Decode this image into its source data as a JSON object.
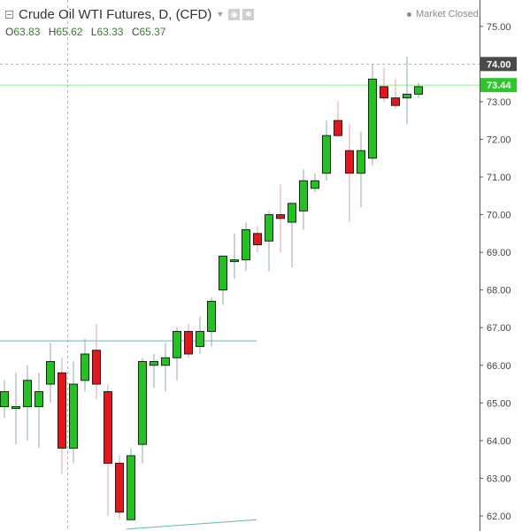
{
  "legend": {
    "symbol": "Crude Oil WTI Futures",
    "interval": "D",
    "exchange": "(CFD)",
    "ohlc": [
      {
        "label": "O",
        "value": "63.83"
      },
      {
        "label": "H",
        "value": "65.62"
      },
      {
        "label": "L",
        "value": "63.33"
      },
      {
        "label": "C",
        "value": "65.37"
      }
    ]
  },
  "status": "Market Closed",
  "colors": {
    "up": "#21c41f",
    "down": "#e8141a",
    "wick": "#8fa8b8",
    "price_line": "#8ef08a",
    "price_badge": "#2ec72b",
    "crosshair_badge": "#4a4a4a",
    "trendline": "#5fb7b0"
  },
  "chart_data": {
    "type": "candlestick",
    "y_axis_ticks": [
      62.0,
      63.0,
      64.0,
      65.0,
      66.0,
      67.0,
      68.0,
      69.0,
      70.0,
      71.0,
      72.0,
      73.0,
      74.0,
      75.0
    ],
    "ylim": [
      61.6,
      75.7
    ],
    "current_price": 73.44,
    "current_price_label": "73.44",
    "crosshair_price": 74.0,
    "crosshair_price_label": "74.00",
    "candles": [
      {
        "o": 64.9,
        "h": 65.6,
        "l": 64.6,
        "c": 65.3
      },
      {
        "o": 64.9,
        "h": 65.8,
        "l": 63.9,
        "c": 64.9
      },
      {
        "o": 64.9,
        "h": 66.0,
        "l": 64.0,
        "c": 65.6
      },
      {
        "o": 64.9,
        "h": 65.8,
        "l": 63.8,
        "c": 65.3
      },
      {
        "o": 65.5,
        "h": 66.6,
        "l": 65.0,
        "c": 66.1
      },
      {
        "o": 65.8,
        "h": 66.2,
        "l": 63.1,
        "c": 63.8
      },
      {
        "o": 63.8,
        "h": 66.1,
        "l": 63.4,
        "c": 65.5
      },
      {
        "o": 65.6,
        "h": 66.7,
        "l": 65.3,
        "c": 66.3
      },
      {
        "o": 66.4,
        "h": 67.1,
        "l": 65.1,
        "c": 65.5
      },
      {
        "o": 65.3,
        "h": 65.5,
        "l": 62.0,
        "c": 63.4
      },
      {
        "o": 63.4,
        "h": 63.6,
        "l": 61.9,
        "c": 62.1
      },
      {
        "o": 61.9,
        "h": 63.8,
        "l": 61.9,
        "c": 63.6
      },
      {
        "o": 63.9,
        "h": 66.2,
        "l": 63.4,
        "c": 66.1
      },
      {
        "o": 66.0,
        "h": 66.3,
        "l": 65.4,
        "c": 66.1
      },
      {
        "o": 66.0,
        "h": 66.6,
        "l": 65.3,
        "c": 66.2
      },
      {
        "o": 66.2,
        "h": 67.0,
        "l": 65.6,
        "c": 66.9
      },
      {
        "o": 66.9,
        "h": 67.1,
        "l": 66.2,
        "c": 66.3
      },
      {
        "o": 66.5,
        "h": 67.3,
        "l": 66.3,
        "c": 66.9
      },
      {
        "o": 66.9,
        "h": 67.8,
        "l": 66.5,
        "c": 67.7
      },
      {
        "o": 68.0,
        "h": 68.9,
        "l": 67.6,
        "c": 68.9
      },
      {
        "o": 68.8,
        "h": 69.5,
        "l": 68.3,
        "c": 68.8
      },
      {
        "o": 68.8,
        "h": 69.8,
        "l": 68.5,
        "c": 69.6
      },
      {
        "o": 69.5,
        "h": 69.7,
        "l": 69.0,
        "c": 69.2
      },
      {
        "o": 69.3,
        "h": 70.1,
        "l": 68.5,
        "c": 70.0
      },
      {
        "o": 70.0,
        "h": 70.8,
        "l": 69.0,
        "c": 69.9
      },
      {
        "o": 69.8,
        "h": 70.3,
        "l": 68.6,
        "c": 70.3
      },
      {
        "o": 70.1,
        "h": 71.2,
        "l": 69.6,
        "c": 70.9
      },
      {
        "o": 70.7,
        "h": 71.1,
        "l": 70.6,
        "c": 70.9
      },
      {
        "o": 71.1,
        "h": 72.5,
        "l": 70.9,
        "c": 72.1
      },
      {
        "o": 72.5,
        "h": 73.0,
        "l": 72.1,
        "c": 72.1
      },
      {
        "o": 71.7,
        "h": 72.4,
        "l": 69.8,
        "c": 71.1
      },
      {
        "o": 71.1,
        "h": 72.2,
        "l": 70.2,
        "c": 71.7
      },
      {
        "o": 71.5,
        "h": 74.0,
        "l": 71.3,
        "c": 73.6
      },
      {
        "o": 73.4,
        "h": 73.9,
        "l": 73.0,
        "c": 73.1
      },
      {
        "o": 73.1,
        "h": 73.6,
        "l": 72.8,
        "c": 72.9
      },
      {
        "o": 73.1,
        "h": 74.2,
        "l": 72.4,
        "c": 73.2
      },
      {
        "o": 73.2,
        "h": 73.5,
        "l": 73.1,
        "c": 73.4
      }
    ],
    "trendlines": [
      {
        "from": {
          "candle": 0,
          "price": 66.65
        },
        "to": {
          "candle": 19,
          "price": 66.65
        }
      },
      {
        "from": {
          "candle": 11,
          "price": 61.65
        },
        "to": {
          "candle": 19,
          "price": 61.9
        }
      }
    ],
    "crosshair_candle": 5.5
  }
}
